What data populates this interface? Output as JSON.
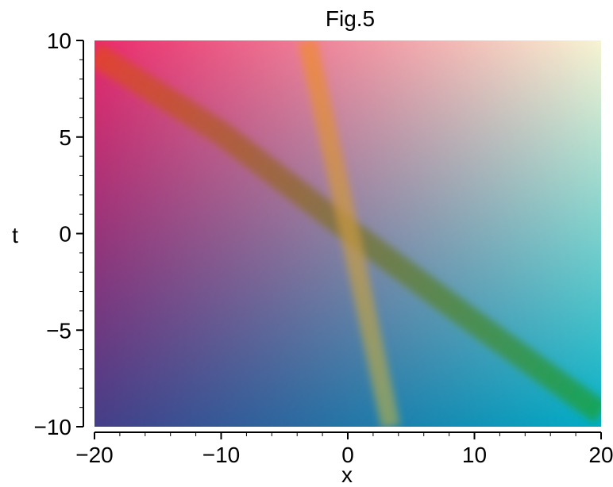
{
  "chart_data": {
    "type": "heatmap",
    "title": "Fig.5",
    "xlabel": "x",
    "ylabel": "t",
    "xlim": [
      -20,
      20
    ],
    "ylim": [
      -10,
      10
    ],
    "x_ticks": [
      {
        "value": -20,
        "label": "−20"
      },
      {
        "value": -10,
        "label": "−10"
      },
      {
        "value": 0,
        "label": "0"
      },
      {
        "value": 10,
        "label": "10"
      },
      {
        "value": 20,
        "label": "20"
      }
    ],
    "y_ticks": [
      {
        "value": 10,
        "label": "10"
      },
      {
        "value": 5,
        "label": "5"
      },
      {
        "value": 0,
        "label": "0"
      },
      {
        "value": -5,
        "label": "−5"
      },
      {
        "value": -10,
        "label": "−10"
      }
    ],
    "corner_colors": {
      "top_left": "#ea2a6c",
      "top_right": "#f7f4d3",
      "bottom_left": "#453e88",
      "bottom_right": "#00aec6"
    },
    "bands": [
      {
        "points": [
          [
            -20,
            9.3
          ],
          [
            -10,
            5.2
          ],
          [
            0,
            0.2
          ],
          [
            10,
            -4.6
          ],
          [
            20,
            -9.3
          ]
        ],
        "color_start": "#e2452b",
        "color_end": "#17a34a"
      },
      {
        "points": [
          [
            -3.2,
            10
          ],
          [
            0,
            0.5
          ],
          [
            3.4,
            -10
          ]
        ],
        "color_start": "#f08a2d",
        "color_end": "#a5ab54"
      }
    ],
    "grid": false
  }
}
